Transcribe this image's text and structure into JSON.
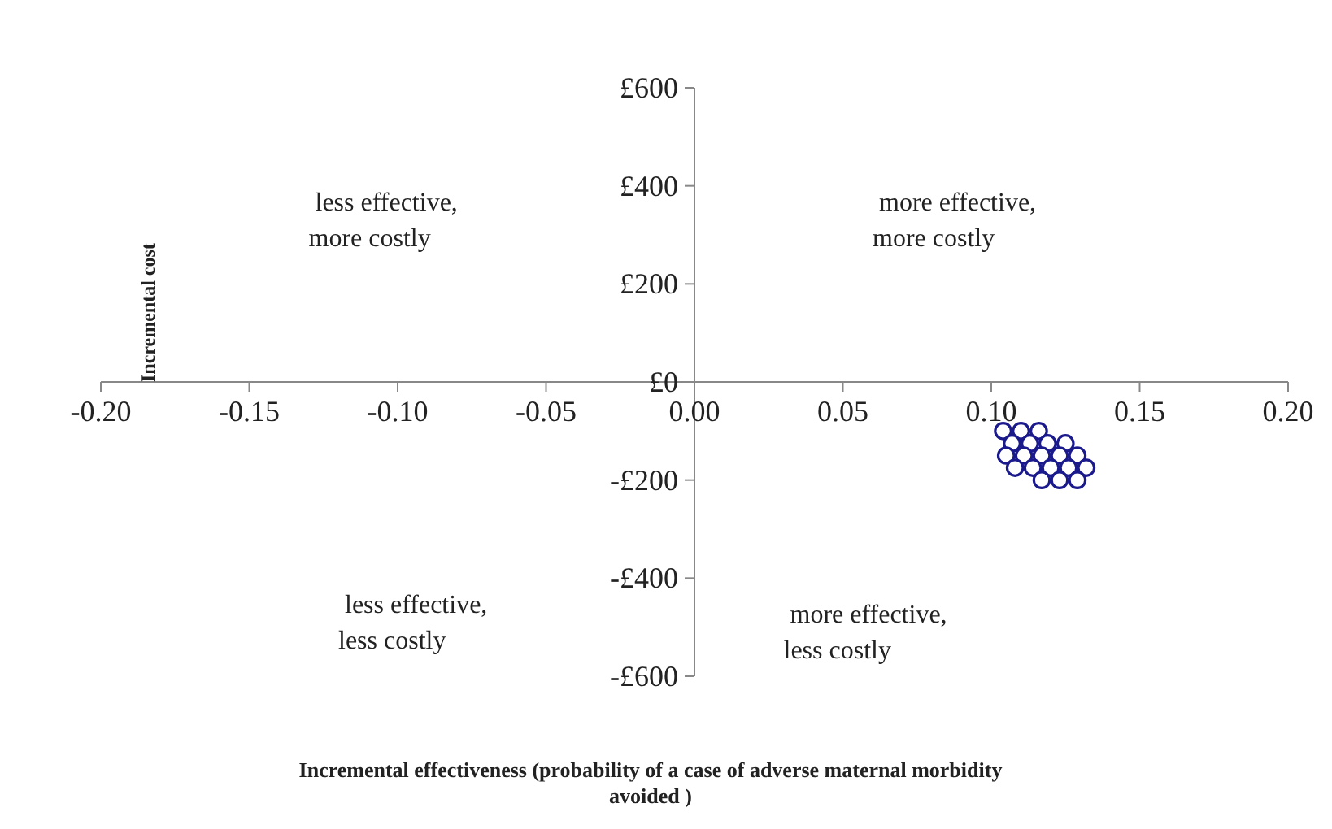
{
  "chart_data": {
    "type": "scatter",
    "xlabel": "Incremental effectiveness (probability of a case of adverse maternal morbidity avoided )",
    "ylabel": "Incremental cost",
    "xlim": [
      -0.2,
      0.2
    ],
    "ylim": [
      -600,
      600
    ],
    "xticks": [
      {
        "value": -0.2,
        "label": "-0.20"
      },
      {
        "value": -0.15,
        "label": "-0.15"
      },
      {
        "value": -0.1,
        "label": "-0.10"
      },
      {
        "value": -0.05,
        "label": "-0.05"
      },
      {
        "value": 0,
        "label": "0.00"
      },
      {
        "value": 0.05,
        "label": "0.05"
      },
      {
        "value": 0.1,
        "label": "0.10"
      },
      {
        "value": 0.15,
        "label": "0.15"
      },
      {
        "value": 0.2,
        "label": "0.20"
      }
    ],
    "yticks": [
      {
        "value": 600,
        "label": "£600"
      },
      {
        "value": 400,
        "label": "£400"
      },
      {
        "value": 200,
        "label": "£200"
      },
      {
        "value": 0,
        "label": "£0"
      },
      {
        "value": -200,
        "label": "-£200"
      },
      {
        "value": -400,
        "label": "-£400"
      },
      {
        "value": -600,
        "label": "-£600"
      }
    ],
    "marker": "circle",
    "grid": false,
    "annotations": [
      "less effective,\nmore costly",
      "more effective,\nmore costly",
      "less effective,\nless costly",
      "more effective,\nless costly"
    ],
    "series": [
      {
        "color": "#1a1a8c",
        "x": [
          0.104,
          0.11,
          0.116,
          0.107,
          0.113,
          0.119,
          0.125,
          0.105,
          0.111,
          0.117,
          0.123,
          0.129,
          0.108,
          0.114,
          0.12,
          0.126,
          0.132,
          0.117,
          0.123,
          0.129
        ],
        "values": [
          -100,
          -100,
          -100,
          -125,
          -125,
          -125,
          -125,
          -150,
          -150,
          -150,
          -150,
          -150,
          -175,
          -175,
          -175,
          -175,
          -175,
          -200,
          -200,
          -200
        ]
      }
    ]
  }
}
